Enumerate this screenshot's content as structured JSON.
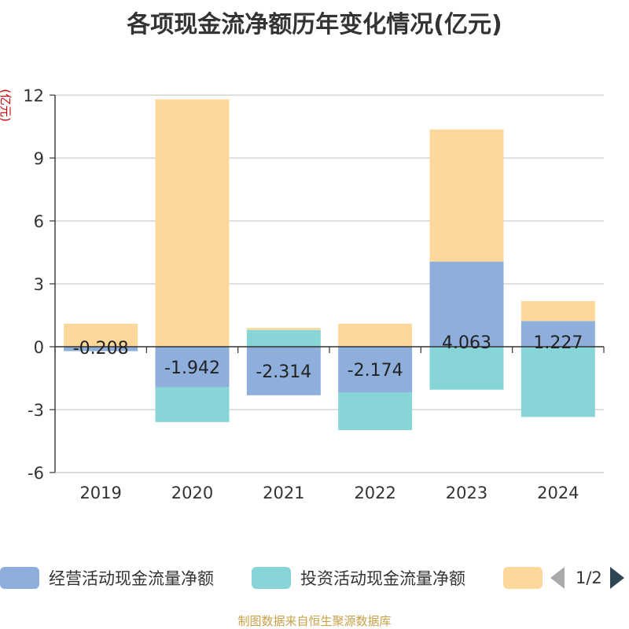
{
  "title": "各项现金流净额历年变化情况(亿元)",
  "y_unit": "(亿元)",
  "source": "制图数据来自恒生聚源数据库",
  "legend": {
    "items": [
      {
        "label": "经营活动现金流量净额",
        "color": "#8eaedb"
      },
      {
        "label": "投资活动现金流量净额",
        "color": "#88d5d8"
      },
      {
        "label": "",
        "color": "#fdd89a"
      }
    ],
    "page": "1/2"
  },
  "chart_data": {
    "type": "bar",
    "stacked": true,
    "categories": [
      "2019",
      "2020",
      "2021",
      "2022",
      "2023",
      "2024"
    ],
    "ylim": [
      -6,
      12
    ],
    "yticks": [
      -6,
      -3,
      0,
      3,
      6,
      9,
      12
    ],
    "grid": true,
    "legend_position": "bottom",
    "series": [
      {
        "name": "经营活动现金流量净额",
        "color": "#8eaedb",
        "values": [
          -0.208,
          -1.942,
          -2.314,
          -2.174,
          4.063,
          1.227
        ],
        "labels": [
          "-0.208",
          "-1.942",
          "-2.314",
          "-2.174",
          "4.063",
          "1.227"
        ]
      },
      {
        "name": "投资活动现金流量净额",
        "color": "#88d5d8",
        "values": [
          0.0,
          -1.65,
          0.8,
          -1.8,
          -2.05,
          -3.35
        ]
      },
      {
        "name": "",
        "color": "#fdd89a",
        "values": [
          1.1,
          11.8,
          0.1,
          1.1,
          6.3,
          0.95
        ]
      }
    ]
  }
}
